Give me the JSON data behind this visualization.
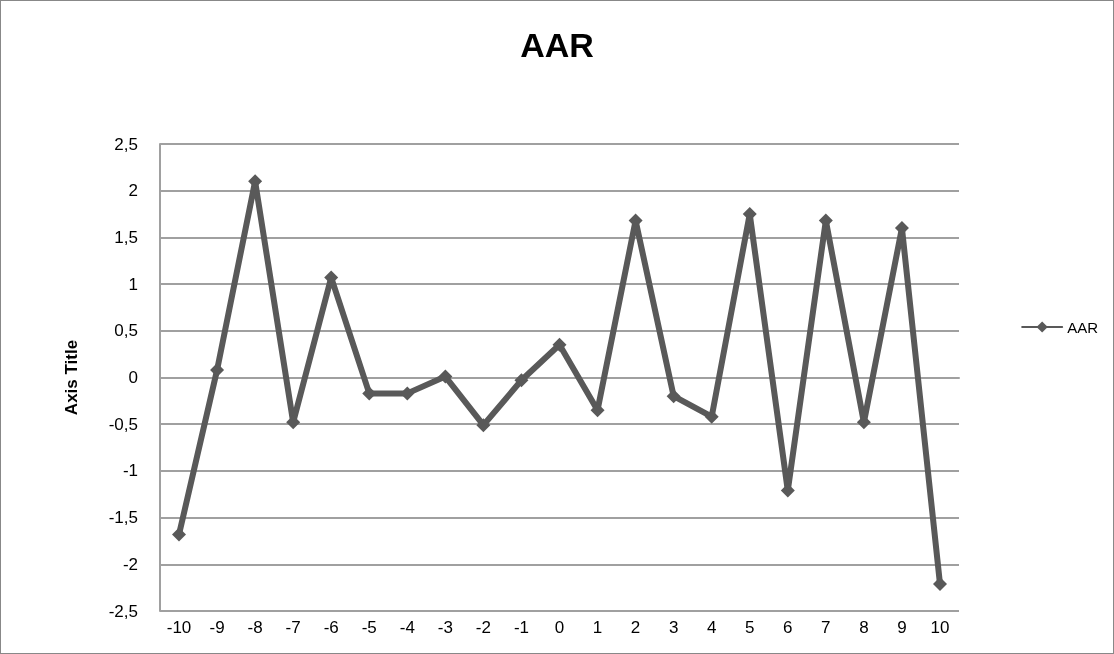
{
  "chart_data": {
    "type": "line",
    "title": "AAR",
    "ylabel": "Axis Title",
    "categories": [
      "-10",
      "-9",
      "-8",
      "-7",
      "-6",
      "-5",
      "-4",
      "-3",
      "-2",
      "-1",
      "0",
      "1",
      "2",
      "3",
      "4",
      "5",
      "6",
      "7",
      "8",
      "9",
      "10"
    ],
    "series": [
      {
        "name": "AAR",
        "color": "#595959",
        "values": [
          -1.68,
          0.08,
          2.1,
          -0.48,
          1.07,
          -0.17,
          -0.17,
          0.01,
          -0.51,
          -0.03,
          0.35,
          -0.35,
          1.68,
          -0.2,
          -0.42,
          1.75,
          -1.21,
          1.68,
          -0.48,
          1.6,
          -2.21
        ]
      }
    ],
    "ylim": [
      -2.5,
      2.5
    ],
    "yticks": [
      {
        "value": -2.5,
        "label": "-2,5"
      },
      -2,
      {
        "value": -1.5,
        "label": "-1,5"
      },
      -1,
      {
        "value": -0.5,
        "label": "-0,5"
      },
      0,
      {
        "value": 0.5,
        "label": "0,5"
      },
      1,
      {
        "value": 1.5,
        "label": "1,5"
      },
      2,
      {
        "value": 2.5,
        "label": "2,5"
      }
    ],
    "grid": "y",
    "legend": "right",
    "marker": "diamond",
    "line_style": "solid"
  }
}
